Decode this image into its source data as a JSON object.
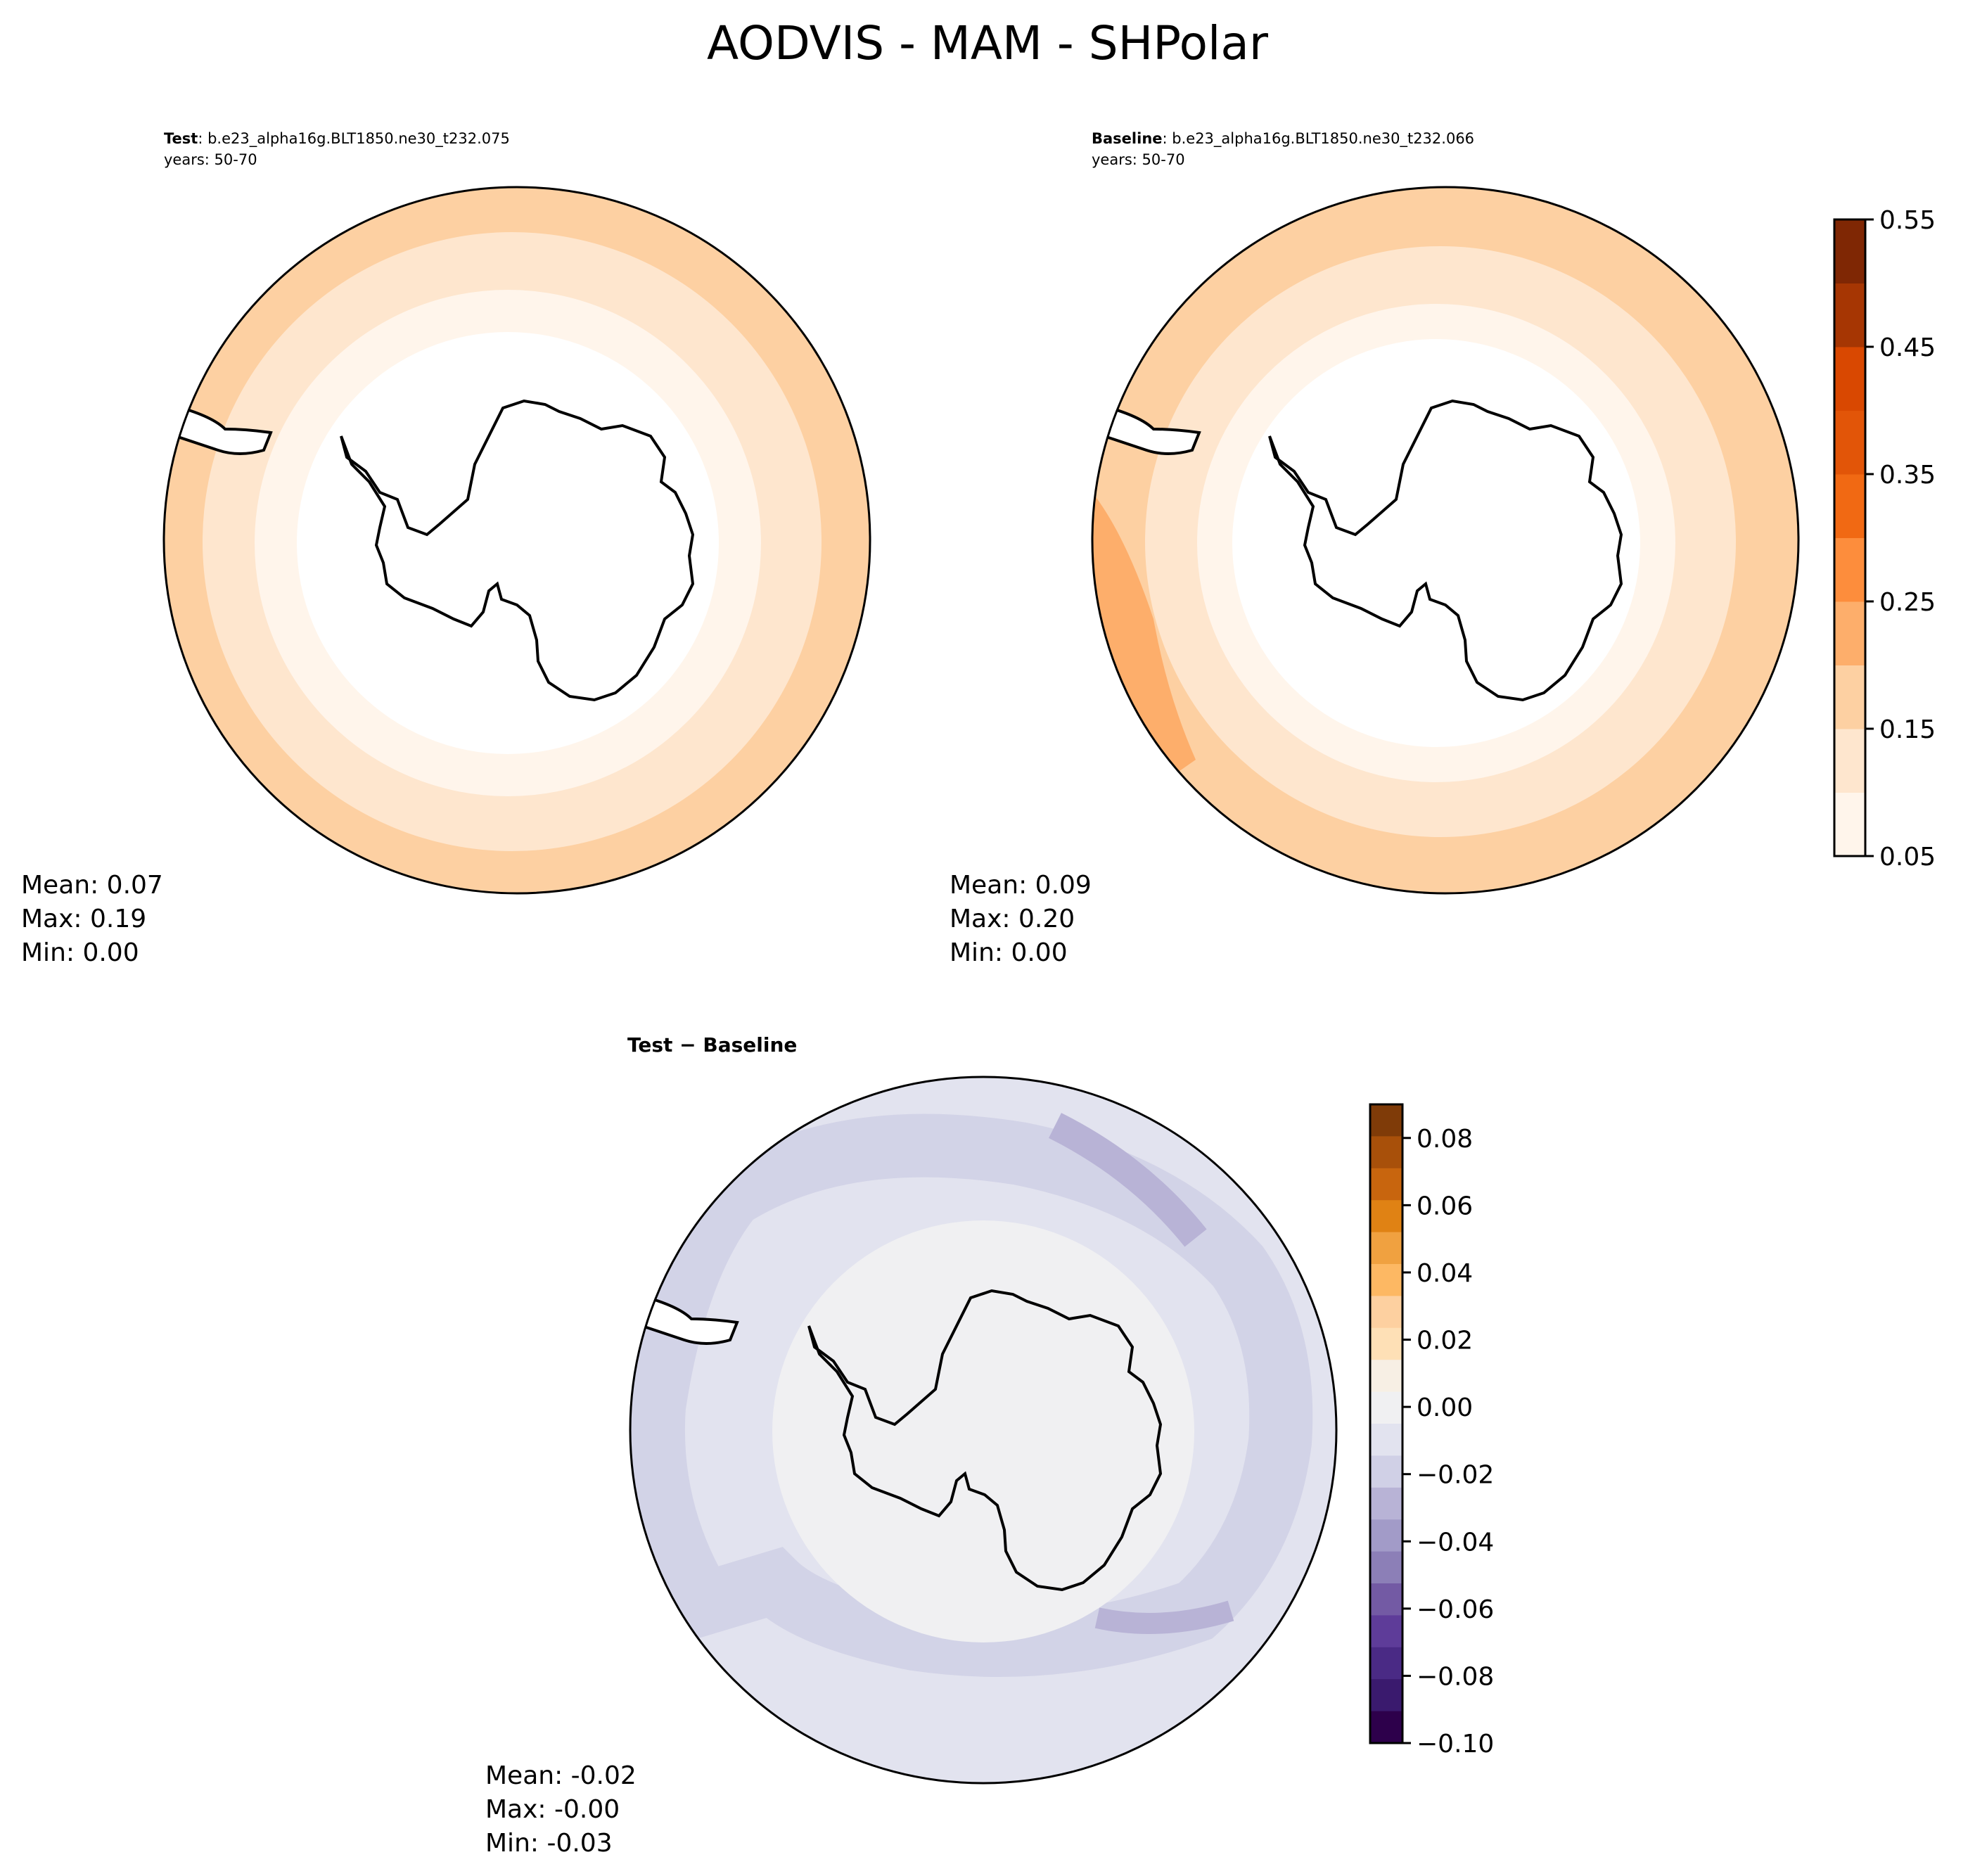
{
  "figure": {
    "title": "AODVIS - MAM - SHPolar"
  },
  "panels": [
    {
      "id": "test",
      "label_bold": "Test",
      "label_rest": ": b.e23_alpha16g.BLT1850.ne30_t232.075",
      "subtitle": "years: 50-70",
      "stats": [
        "Mean:  0.07",
        "Max:  0.19",
        "Min:  0.00"
      ]
    },
    {
      "id": "baseline",
      "label_bold": "Baseline",
      "label_rest": ": b.e23_alpha16g.BLT1850.ne30_t232.066",
      "subtitle": "years: 50-70",
      "stats": [
        "Mean:  0.09",
        "Max:  0.20",
        "Min:  0.00"
      ]
    },
    {
      "id": "diff",
      "label_bold": "Test − Baseline",
      "stats": [
        "Mean: -0.02",
        "Max: -0.00",
        "Min: -0.03"
      ]
    }
  ],
  "colorbars": {
    "main": {
      "ticks": [
        "0.05",
        "0.15",
        "0.25",
        "0.35",
        "0.45",
        "0.55"
      ],
      "colors": [
        "#fff5eb",
        "#fee6ce",
        "#fdd0a2",
        "#fdae6b",
        "#fd8d3c",
        "#f16913",
        "#e25508",
        "#d94801",
        "#a63603",
        "#7f2704"
      ]
    },
    "diff": {
      "ticks": [
        "0.08",
        "0.06",
        "0.04",
        "0.02",
        "0.00",
        "−0.02",
        "−0.04",
        "−0.06",
        "−0.08",
        "−0.10"
      ],
      "colors_top_to_bottom": [
        "#7f3b08",
        "#a8500a",
        "#c8650e",
        "#e08214",
        "#f0a140",
        "#fdb863",
        "#fdd0a0",
        "#fee0b6",
        "#f7efe4",
        "#f0f0f2",
        "#e2e3ef",
        "#d0d0e6",
        "#b8b3d6",
        "#a29bc8",
        "#8c7fb7",
        "#735aa4",
        "#5e3c99",
        "#4a2a85",
        "#3a1a6e",
        "#2d004b"
      ]
    }
  }
}
